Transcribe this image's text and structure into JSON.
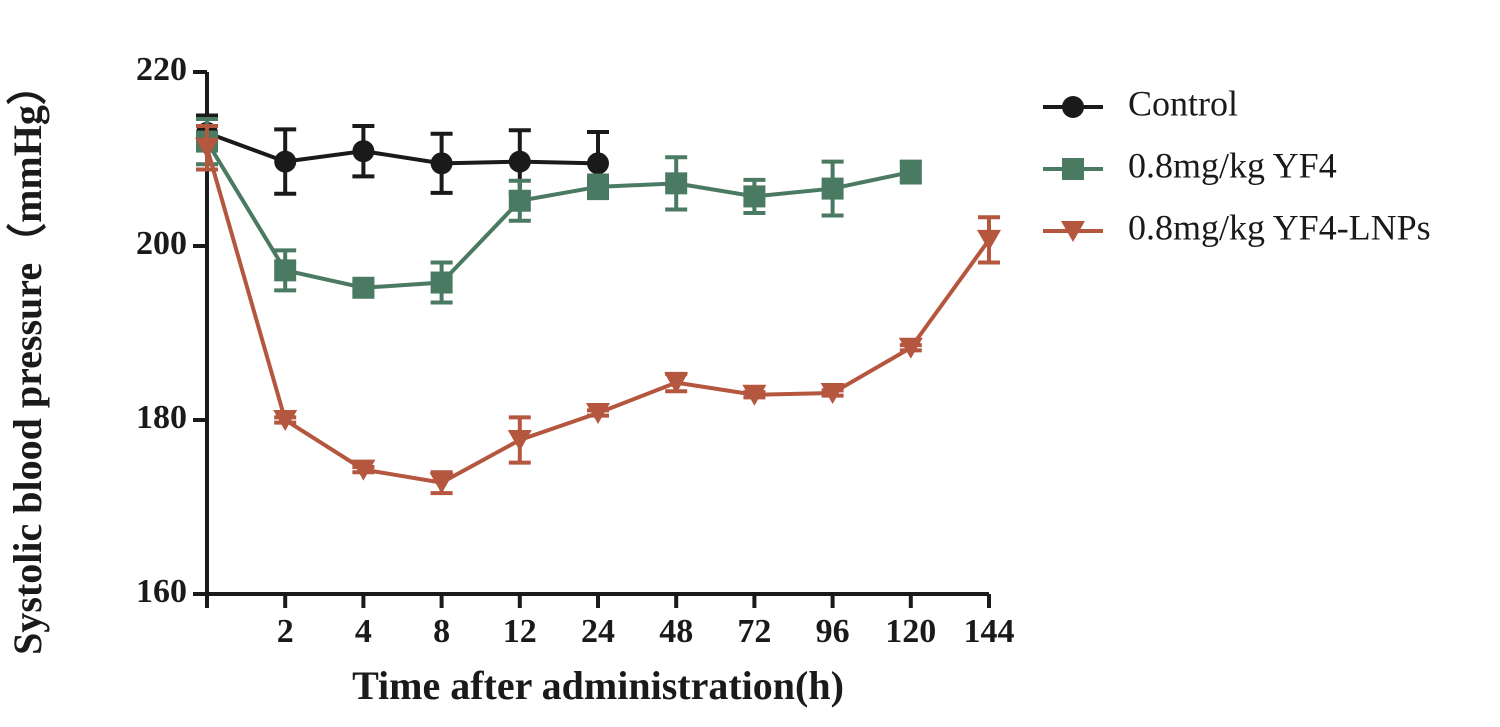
{
  "chart_data": {
    "type": "line",
    "x_label": "Time after administration(h)",
    "y_label": "Systolic blood pressure（mmHg）",
    "categories": [
      null,
      "2",
      "4",
      "8",
      "12",
      "24",
      "48",
      "72",
      "96",
      "120",
      "144"
    ],
    "ylim": [
      160,
      220
    ],
    "yticks": [
      160,
      180,
      200,
      220
    ],
    "legend_position": "right",
    "series": [
      {
        "name": "Control",
        "color": "#1a1a1a",
        "marker": "circle",
        "values": [
          213,
          209.7,
          210.9,
          209.5,
          209.7,
          209.5,
          null,
          null,
          null,
          null,
          null
        ],
        "errors": [
          2,
          3.7,
          2.9,
          3.4,
          3.6,
          3.6,
          null,
          null,
          null,
          null,
          null
        ]
      },
      {
        "name": "0.8mg/kg YF4",
        "color": "#4a7a62",
        "marker": "square",
        "values": [
          212,
          197.2,
          195.2,
          195.8,
          205.2,
          206.8,
          207.2,
          205.7,
          206.6,
          208.5,
          null
        ],
        "errors": [
          2.6,
          2.3,
          0.6,
          2.3,
          2.3,
          1.3,
          3,
          1.9,
          3.1,
          1.2,
          null
        ]
      },
      {
        "name": "0.8mg/kg YF4-LNPs",
        "color": "#b5563f",
        "marker": "triangle-down",
        "values": [
          211.3,
          180,
          174.3,
          172.8,
          177.7,
          180.8,
          184.3,
          182.9,
          183.1,
          188.3,
          200.7
        ],
        "errors": [
          2.5,
          0.3,
          0.3,
          1.2,
          2.6,
          0.3,
          1,
          0.3,
          0.3,
          0.3,
          2.6
        ]
      }
    ]
  }
}
